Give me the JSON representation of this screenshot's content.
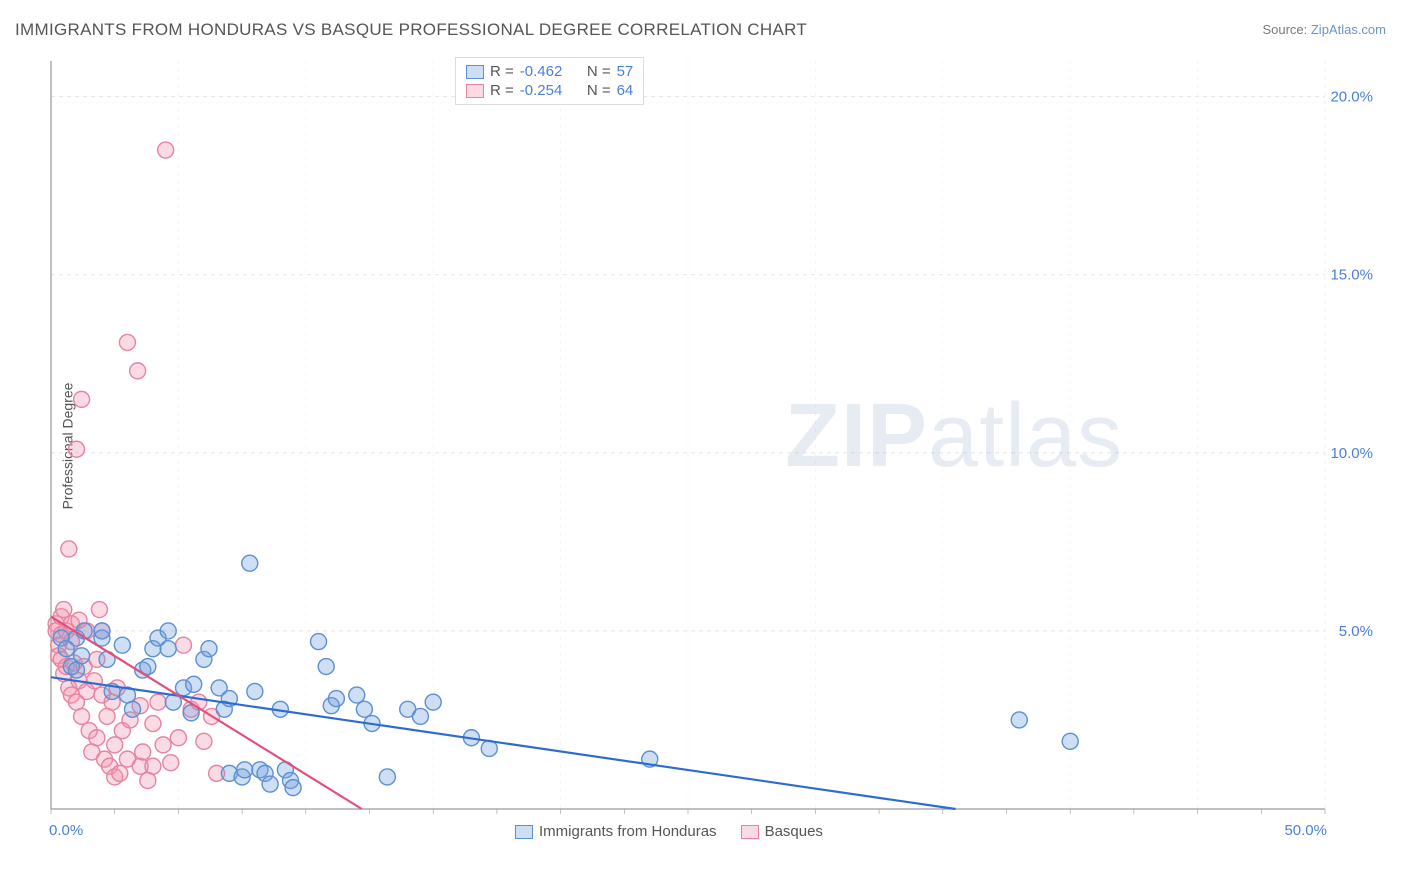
{
  "title": "IMMIGRANTS FROM HONDURAS VS BASQUE PROFESSIONAL DEGREE CORRELATION CHART",
  "source_label": "Source: ",
  "source_link": "ZipAtlas.com",
  "ylabel": "Professional Degree",
  "watermark_zip": "ZIP",
  "watermark_atlas": "atlas",
  "chart": {
    "type": "scatter",
    "xlim": [
      0,
      50
    ],
    "ylim": [
      0,
      21
    ],
    "x_ticks": [
      0,
      50
    ],
    "x_tick_labels": [
      "0.0%",
      "50.0%"
    ],
    "y_ticks": [
      5,
      10,
      15,
      20
    ],
    "y_tick_labels": [
      "5.0%",
      "10.0%",
      "15.0%",
      "20.0%"
    ],
    "grid_color": "#e3e3e3",
    "axis_color": "#9a9a9a",
    "background_color": "#ffffff",
    "tick_label_color": "#4a80d8",
    "marker_radius": 8,
    "marker_stroke_width": 1.4,
    "series": [
      {
        "name": "Immigrants from Honduras",
        "fill": "rgba(116,160,220,0.35)",
        "stroke": "#5c8fd4",
        "r_value": "-0.462",
        "n_value": "57",
        "trend": {
          "x1": 0,
          "y1": 3.7,
          "x2": 35.5,
          "y2": 0,
          "color": "#2e6bd0",
          "width": 2.2
        },
        "points": [
          [
            0.4,
            4.8
          ],
          [
            0.6,
            4.5
          ],
          [
            0.8,
            4.0
          ],
          [
            1.0,
            4.8
          ],
          [
            1.0,
            3.9
          ],
          [
            1.2,
            4.3
          ],
          [
            1.3,
            5.0
          ],
          [
            2.0,
            4.8
          ],
          [
            2.0,
            5.0
          ],
          [
            2.2,
            4.2
          ],
          [
            2.4,
            3.3
          ],
          [
            2.8,
            4.6
          ],
          [
            3.0,
            3.2
          ],
          [
            3.2,
            2.8
          ],
          [
            3.6,
            3.9
          ],
          [
            3.8,
            4.0
          ],
          [
            4.0,
            4.5
          ],
          [
            4.2,
            4.8
          ],
          [
            4.6,
            5.0
          ],
          [
            4.6,
            4.5
          ],
          [
            4.8,
            3.0
          ],
          [
            5.2,
            3.4
          ],
          [
            5.5,
            2.7
          ],
          [
            5.6,
            3.5
          ],
          [
            6.0,
            4.2
          ],
          [
            6.2,
            4.5
          ],
          [
            6.6,
            3.4
          ],
          [
            6.8,
            2.8
          ],
          [
            7.0,
            3.1
          ],
          [
            7.0,
            1.0
          ],
          [
            7.5,
            0.9
          ],
          [
            7.6,
            1.1
          ],
          [
            7.8,
            6.9
          ],
          [
            8.0,
            3.3
          ],
          [
            8.2,
            1.1
          ],
          [
            8.4,
            1.0
          ],
          [
            8.6,
            0.7
          ],
          [
            9.0,
            2.8
          ],
          [
            9.2,
            1.1
          ],
          [
            9.4,
            0.8
          ],
          [
            9.5,
            0.6
          ],
          [
            10.5,
            4.7
          ],
          [
            10.8,
            4.0
          ],
          [
            11.0,
            2.9
          ],
          [
            11.2,
            3.1
          ],
          [
            12.0,
            3.2
          ],
          [
            12.3,
            2.8
          ],
          [
            12.6,
            2.4
          ],
          [
            13.2,
            0.9
          ],
          [
            14.0,
            2.8
          ],
          [
            14.5,
            2.6
          ],
          [
            15.0,
            3.0
          ],
          [
            16.5,
            2.0
          ],
          [
            17.2,
            1.7
          ],
          [
            23.5,
            1.4
          ],
          [
            38.0,
            2.5
          ],
          [
            40.0,
            1.9
          ]
        ]
      },
      {
        "name": "Basques",
        "fill": "rgba(240,150,175,0.35)",
        "stroke": "#e783a0",
        "r_value": "-0.254",
        "n_value": "64",
        "trend": {
          "x1": 0,
          "y1": 5.4,
          "x2": 12.2,
          "y2": 0,
          "color": "#e24f7a",
          "width": 2.2
        },
        "points": [
          [
            0.2,
            5.2
          ],
          [
            0.2,
            5.0
          ],
          [
            0.3,
            4.6
          ],
          [
            0.3,
            4.3
          ],
          [
            0.4,
            5.4
          ],
          [
            0.4,
            4.9
          ],
          [
            0.4,
            4.2
          ],
          [
            0.5,
            5.6
          ],
          [
            0.5,
            3.8
          ],
          [
            0.6,
            5.0
          ],
          [
            0.6,
            4.0
          ],
          [
            0.7,
            7.3
          ],
          [
            0.7,
            3.4
          ],
          [
            0.8,
            5.2
          ],
          [
            0.8,
            4.7
          ],
          [
            0.8,
            3.2
          ],
          [
            0.9,
            4.1
          ],
          [
            1.0,
            3.0
          ],
          [
            1.0,
            10.1
          ],
          [
            1.1,
            5.3
          ],
          [
            1.1,
            3.6
          ],
          [
            1.2,
            11.5
          ],
          [
            1.2,
            2.6
          ],
          [
            1.3,
            4.0
          ],
          [
            1.4,
            5.0
          ],
          [
            1.4,
            3.3
          ],
          [
            1.5,
            2.2
          ],
          [
            1.6,
            1.6
          ],
          [
            1.7,
            3.6
          ],
          [
            1.8,
            2.0
          ],
          [
            1.8,
            4.2
          ],
          [
            1.9,
            5.6
          ],
          [
            2.0,
            3.2
          ],
          [
            2.0,
            5.0
          ],
          [
            2.1,
            1.4
          ],
          [
            2.2,
            2.6
          ],
          [
            2.3,
            1.2
          ],
          [
            2.4,
            3.0
          ],
          [
            2.5,
            1.8
          ],
          [
            2.5,
            0.9
          ],
          [
            2.6,
            3.4
          ],
          [
            2.7,
            1.0
          ],
          [
            2.8,
            2.2
          ],
          [
            3.0,
            13.1
          ],
          [
            3.0,
            1.4
          ],
          [
            3.1,
            2.5
          ],
          [
            3.4,
            12.3
          ],
          [
            3.5,
            1.2
          ],
          [
            3.5,
            2.9
          ],
          [
            3.6,
            1.6
          ],
          [
            3.8,
            0.8
          ],
          [
            4.0,
            2.4
          ],
          [
            4.0,
            1.2
          ],
          [
            4.2,
            3.0
          ],
          [
            4.4,
            1.8
          ],
          [
            4.5,
            18.5
          ],
          [
            4.7,
            1.3
          ],
          [
            5.0,
            2.0
          ],
          [
            5.2,
            4.6
          ],
          [
            5.5,
            2.8
          ],
          [
            5.8,
            3.0
          ],
          [
            6.0,
            1.9
          ],
          [
            6.3,
            2.6
          ],
          [
            6.5,
            1.0
          ]
        ]
      }
    ]
  },
  "legend_top": {
    "r_label": "R =",
    "n_label": "N ="
  },
  "legend_bottom": {
    "series1": "Immigrants from Honduras",
    "series2": "Basques"
  }
}
